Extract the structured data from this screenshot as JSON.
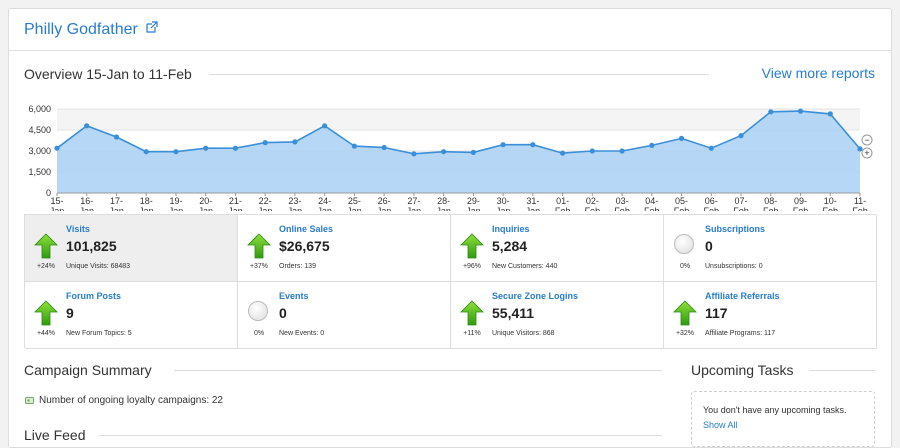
{
  "site": {
    "title": "Philly Godfather"
  },
  "overview": {
    "title": "Overview 15-Jan to 11-Feb",
    "view_more": "View more reports",
    "zoom_out": "−",
    "zoom_in": "+"
  },
  "chart_data": {
    "type": "area",
    "yticks": [
      "6,000",
      "4,500",
      "3,000",
      "1,500",
      "0"
    ],
    "ylim": [
      0,
      6000
    ],
    "x": [
      [
        "15-",
        "Jan"
      ],
      [
        "16-",
        "Jan"
      ],
      [
        "17-",
        "Jan"
      ],
      [
        "18-",
        "Jan"
      ],
      [
        "19-",
        "Jan"
      ],
      [
        "20-",
        "Jan"
      ],
      [
        "21-",
        "Jan"
      ],
      [
        "22-",
        "Jan"
      ],
      [
        "23-",
        "Jan"
      ],
      [
        "24-",
        "Jan"
      ],
      [
        "25-",
        "Jan"
      ],
      [
        "26-",
        "Jan"
      ],
      [
        "27-",
        "Jan"
      ],
      [
        "28-",
        "Jan"
      ],
      [
        "29-",
        "Jan"
      ],
      [
        "30-",
        "Jan"
      ],
      [
        "31-",
        "Jan"
      ],
      [
        "01-",
        "Feb"
      ],
      [
        "02-",
        "Feb"
      ],
      [
        "03-",
        "Feb"
      ],
      [
        "04-",
        "Feb"
      ],
      [
        "05-",
        "Feb"
      ],
      [
        "06-",
        "Feb"
      ],
      [
        "07-",
        "Feb"
      ],
      [
        "08-",
        "Feb"
      ],
      [
        "09-",
        "Feb"
      ],
      [
        "10-",
        "Feb"
      ],
      [
        "11-",
        "Feb"
      ]
    ],
    "values": [
      3200,
      4800,
      4000,
      2950,
      2950,
      3200,
      3200,
      3600,
      3650,
      4800,
      3350,
      3250,
      2800,
      2950,
      2900,
      3450,
      3450,
      2850,
      3000,
      3000,
      3400,
      3900,
      3200,
      4100,
      5800,
      5850,
      5650,
      3150
    ],
    "grid": true,
    "colors": {
      "line": "#3b8fd8",
      "fill": "#a9d0f3",
      "band": "#f4f4f4"
    }
  },
  "stats": [
    {
      "label": "Visits",
      "value": "101,825",
      "sub": "Unique Visits: 68483",
      "pct": "+24%",
      "trend": "up"
    },
    {
      "label": "Online Sales",
      "value": "$26,675",
      "sub": "Orders: 139",
      "pct": "+37%",
      "trend": "up"
    },
    {
      "label": "Inquiries",
      "value": "5,284",
      "sub": "New Customers: 440",
      "pct": "+96%",
      "trend": "up"
    },
    {
      "label": "Subscriptions",
      "value": "0",
      "sub": "Unsubscriptions: 0",
      "pct": "0%",
      "trend": "flat"
    },
    {
      "label": "Forum Posts",
      "value": "9",
      "sub": "New Forum Topics: 5",
      "pct": "+44%",
      "trend": "up"
    },
    {
      "label": "Events",
      "value": "0",
      "sub": "New Events: 0",
      "pct": "0%",
      "trend": "flat"
    },
    {
      "label": "Secure Zone Logins",
      "value": "55,411",
      "sub": "Unique Visitors: 868",
      "pct": "+11%",
      "trend": "up"
    },
    {
      "label": "Affiliate Referrals",
      "value": "117",
      "sub": "Affiliate Programs: 117",
      "pct": "+32%",
      "trend": "up"
    }
  ],
  "campaign": {
    "title": "Campaign Summary",
    "line": "Number of ongoing loyalty campaigns: 22"
  },
  "tasks": {
    "title": "Upcoming Tasks",
    "empty": "You don't have any upcoming tasks.",
    "show_all": "Show All"
  },
  "feed": {
    "title": "Live Feed"
  }
}
